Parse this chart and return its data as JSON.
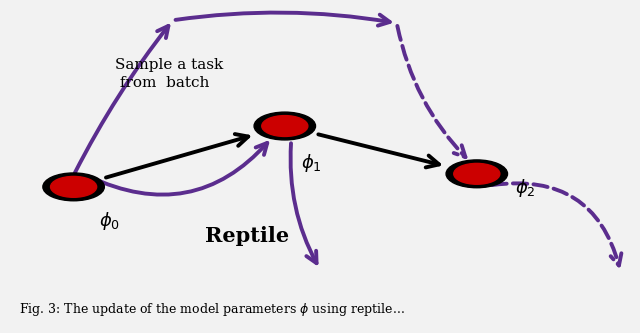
{
  "bg_color": "#E8A070",
  "fig_bg_color": "#F2F2F2",
  "arrow_color": "#5B2D8E",
  "node_fill": "#CC0000",
  "node_edge": "#000000",
  "phi0": [
    0.115,
    0.355
  ],
  "phi1": [
    0.445,
    0.565
  ],
  "phi2": [
    0.745,
    0.4
  ],
  "label_phi0": "$\\phi_0$",
  "label_phi1": "$\\phi_1$",
  "label_phi2": "$\\phi_2$",
  "text_sample": "Sample a task\n from  batch",
  "text_reptile": "Reptile",
  "caption": "Fig. 3: The update of the model parameters $\\phi$ using reptile..."
}
